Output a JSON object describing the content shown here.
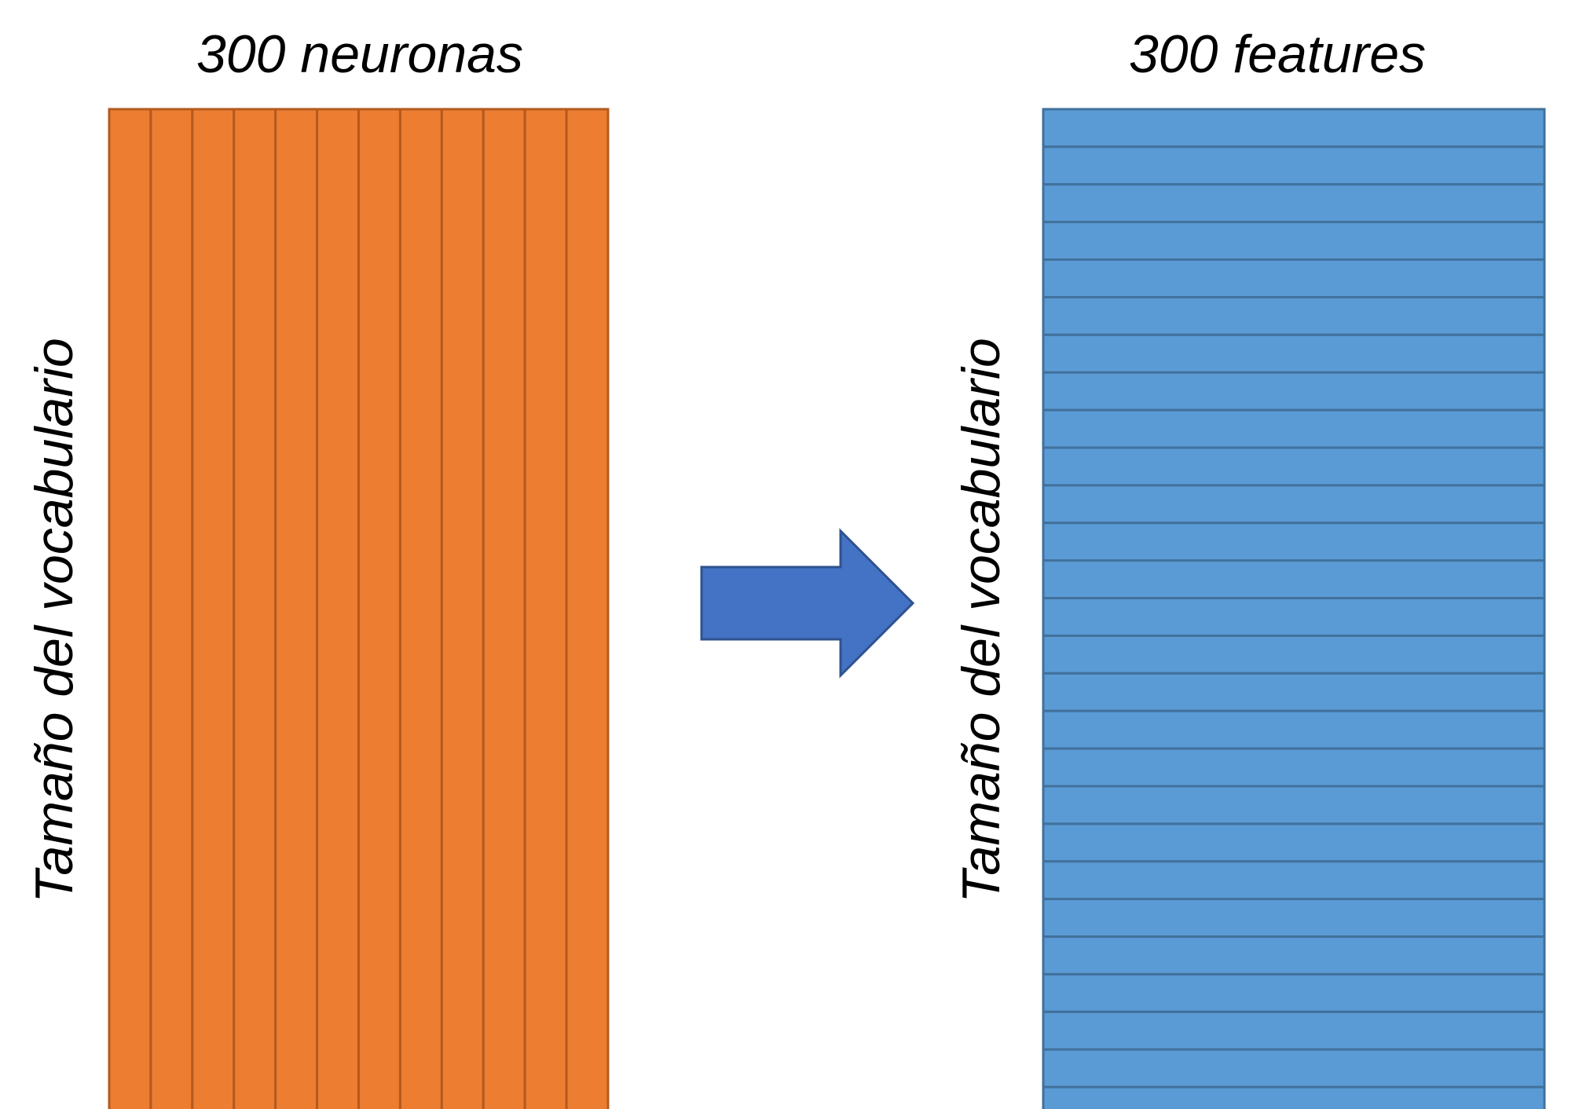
{
  "left_matrix": {
    "top_label": "300 neuronas",
    "side_label": "Tamaño del vocabulario",
    "columns": 12,
    "fill": "#ED7D31",
    "stroke": "#B35A1F"
  },
  "right_matrix": {
    "top_label": "300 features",
    "side_label": "Tamaño del vocabulario",
    "rows": 27,
    "fill": "#5B9BD5",
    "stroke": "#41719C"
  },
  "arrow": {
    "fill": "#4472C4",
    "stroke": "#2F528F"
  }
}
